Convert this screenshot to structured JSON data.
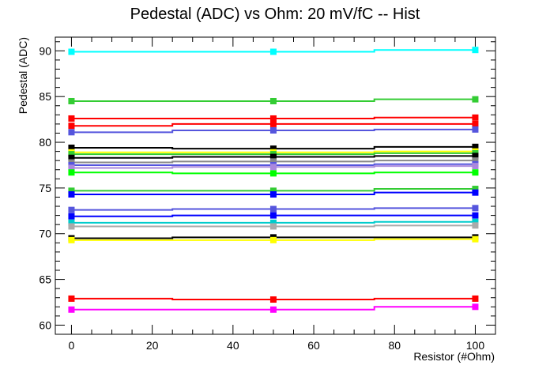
{
  "chart_data": {
    "type": "line",
    "title": "Pedestal (ADC) vs Ohm: 20 mV/fC -- Hist",
    "xlabel": "Resistor (#Ohm)",
    "ylabel": "Pedestal (ADC)",
    "xlim": [
      -4,
      105
    ],
    "ylim": [
      59,
      91.5
    ],
    "x_ticks": [
      0,
      20,
      40,
      60,
      80,
      100
    ],
    "y_ticks": [
      60,
      65,
      70,
      75,
      80,
      85,
      90
    ],
    "grid": false,
    "legend": "none",
    "x": [
      0,
      50,
      100
    ],
    "series": [
      {
        "color": "#00ffff",
        "values": [
          89.9,
          89.9,
          90.1
        ]
      },
      {
        "color": "#33cc33",
        "values": [
          84.5,
          84.5,
          84.7
        ]
      },
      {
        "color": "#ff0000",
        "values": [
          82.6,
          82.6,
          82.7
        ]
      },
      {
        "color": "#ff0000",
        "values": [
          81.8,
          82.0,
          82.0
        ]
      },
      {
        "color": "#5555dd",
        "values": [
          81.1,
          81.3,
          81.4
        ]
      },
      {
        "color": "#000000",
        "values": [
          79.4,
          79.3,
          79.5
        ]
      },
      {
        "color": "#ffff00",
        "values": [
          78.9,
          78.9,
          79.0
        ]
      },
      {
        "color": "#33cc33",
        "values": [
          78.7,
          78.7,
          78.8
        ]
      },
      {
        "color": "#000000",
        "values": [
          78.3,
          78.4,
          78.5
        ]
      },
      {
        "color": "#888888",
        "values": [
          77.8,
          77.9,
          78.0
        ]
      },
      {
        "color": "#5555dd",
        "values": [
          77.5,
          77.5,
          77.6
        ]
      },
      {
        "color": "#aa88dd",
        "values": [
          77.2,
          77.3,
          77.4
        ]
      },
      {
        "color": "#00ff00",
        "values": [
          76.7,
          76.6,
          76.7
        ]
      },
      {
        "color": "#33cc33",
        "values": [
          74.7,
          74.7,
          74.9
        ]
      },
      {
        "color": "#0000ff",
        "values": [
          74.3,
          74.3,
          74.5
        ]
      },
      {
        "color": "#5555dd",
        "values": [
          72.6,
          72.7,
          72.8
        ]
      },
      {
        "color": "#0000ff",
        "values": [
          71.9,
          72.0,
          72.0
        ]
      },
      {
        "color": "#00cccc",
        "values": [
          71.2,
          71.2,
          71.3
        ]
      },
      {
        "color": "#aaaaaa",
        "values": [
          70.8,
          70.8,
          70.9
        ]
      },
      {
        "color": "#000000",
        "values": [
          69.5,
          69.6,
          69.6
        ]
      },
      {
        "color": "#ffff00",
        "values": [
          69.3,
          69.3,
          69.4
        ]
      },
      {
        "color": "#ff0000",
        "values": [
          62.9,
          62.8,
          62.9
        ]
      },
      {
        "color": "#ff00ff",
        "values": [
          61.7,
          61.7,
          62.0
        ]
      }
    ]
  }
}
